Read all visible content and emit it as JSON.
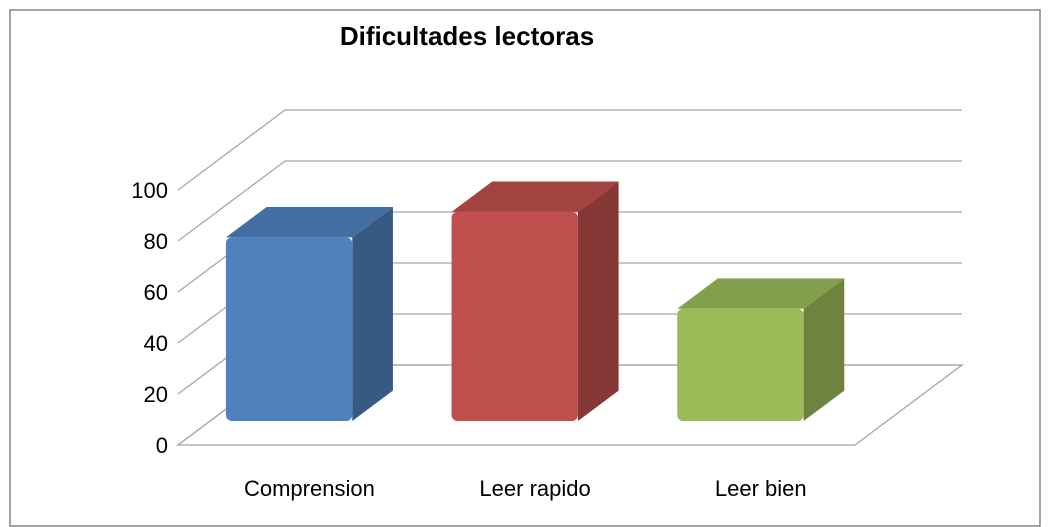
{
  "chart_data": {
    "type": "bar3d",
    "title": "Dificultades lectoras",
    "categories": [
      "Comprension",
      "Leer rapido",
      "Leer bien"
    ],
    "values": [
      72,
      82,
      44
    ],
    "colors": [
      "#4f81bd",
      "#c0504d",
      "#9bbb59"
    ],
    "ylim": [
      0,
      100
    ],
    "yticks": [
      0,
      20,
      40,
      60,
      80,
      100
    ],
    "grid": true
  }
}
